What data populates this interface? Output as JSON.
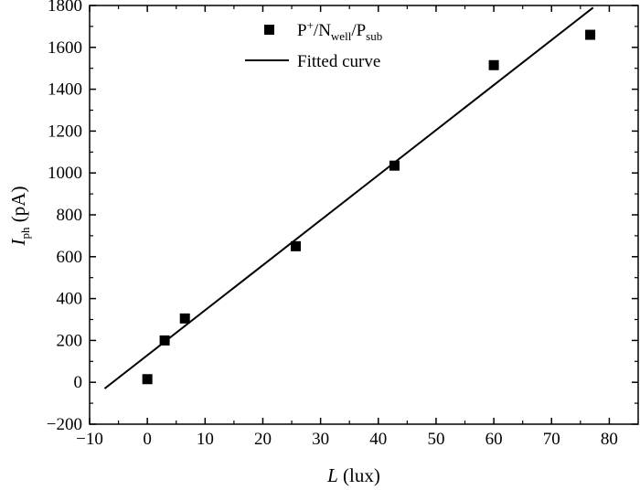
{
  "chart_data": {
    "type": "scatter",
    "xlabel": {
      "italic": "L",
      "rest": " (lux)"
    },
    "ylabel": {
      "italic": "I",
      "subscript": "ph",
      "rest": " (pA)"
    },
    "xlim": [
      -10,
      85
    ],
    "ylim": [
      -200,
      1800
    ],
    "xticks": [
      -10,
      0,
      10,
      20,
      30,
      40,
      50,
      60,
      70,
      80
    ],
    "yticks": [
      -200,
      0,
      200,
      400,
      600,
      800,
      1000,
      1200,
      1400,
      1600,
      1800
    ],
    "grid": false,
    "legend_position": "top-center",
    "series": [
      {
        "name": "P⁺/N_well/P_sub",
        "marker": "square",
        "color": "#000000",
        "x": [
          0,
          3,
          6.5,
          25.7,
          42.8,
          60,
          76.7
        ],
        "y": [
          15,
          200,
          305,
          650,
          1035,
          1515,
          1660
        ]
      }
    ],
    "fit": {
      "name": "Fitted curve",
      "color": "#000000",
      "x": [
        -7.4,
        77.2
      ],
      "y": [
        -30,
        1790
      ]
    },
    "legend": [
      {
        "kind": "marker",
        "parts": [
          [
            "P",
            ""
          ],
          [
            "+",
            "sup"
          ],
          [
            "/N",
            ""
          ],
          [
            "well",
            "sub"
          ],
          [
            "/P",
            ""
          ],
          [
            "sub",
            "sub"
          ]
        ]
      },
      {
        "kind": "line",
        "text": "Fitted curve"
      }
    ]
  }
}
